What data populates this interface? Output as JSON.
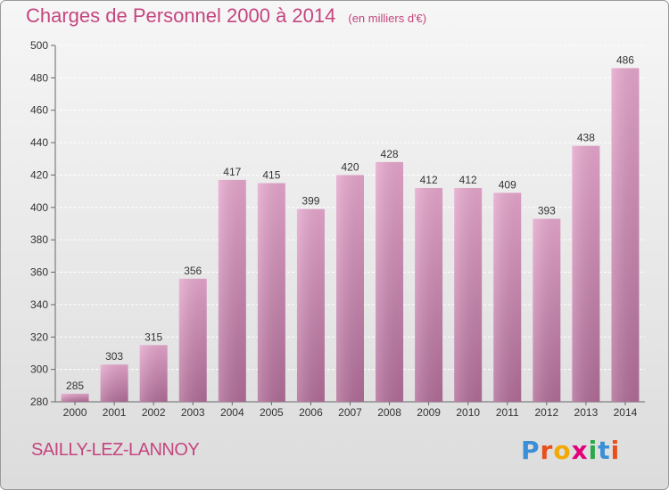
{
  "header": {
    "title": "Charges de Personnel 2000 à 2014",
    "unit": "(en milliers d'€)"
  },
  "footer": {
    "commune": "SAILLY-LEZ-LANNOY",
    "brand_letters": [
      "P",
      "r",
      "o",
      "x",
      "i",
      "t",
      "i"
    ],
    "brand_colors": [
      "#3a8fd6",
      "#e94e1b",
      "#f2a900",
      "#e2007a",
      "#2aa84a",
      "#3a8fd6",
      "#e94e1b"
    ]
  },
  "colors": {
    "bar_top": "#e6a7cd",
    "bar_bottom": "#b16d98",
    "text_accent": "#c5457f"
  },
  "chart_data": {
    "type": "bar",
    "title": "Charges de Personnel 2000 à 2014",
    "categories": [
      "2000",
      "2001",
      "2002",
      "2003",
      "2004",
      "2005",
      "2006",
      "2007",
      "2008",
      "2009",
      "2010",
      "2011",
      "2012",
      "2013",
      "2014"
    ],
    "values": [
      285,
      303,
      315,
      356,
      417,
      415,
      399,
      420,
      428,
      412,
      412,
      409,
      393,
      438,
      486
    ],
    "ylim": [
      280,
      500
    ],
    "yticks": [
      280,
      300,
      320,
      340,
      360,
      380,
      400,
      420,
      440,
      460,
      480,
      500
    ],
    "grid": true,
    "xlabel": "",
    "ylabel": ""
  }
}
